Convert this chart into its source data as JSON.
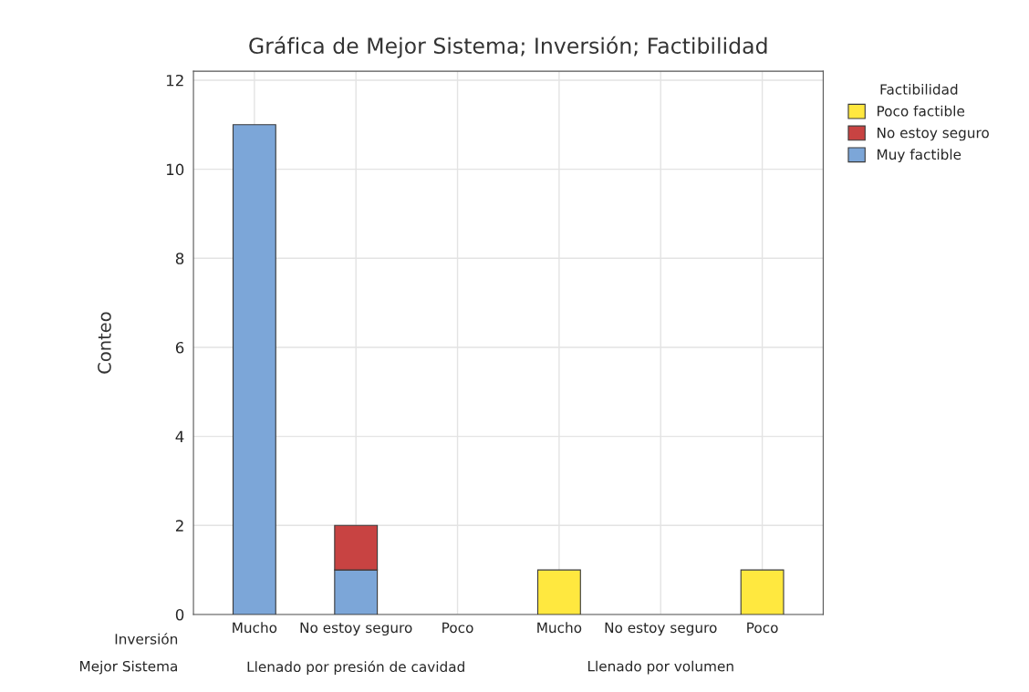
{
  "chart_data": {
    "type": "bar",
    "title": "Gráfica de Mejor Sistema; Inversión; Factibilidad",
    "ylabel": "Conteo",
    "legend_title": "Factibilidad",
    "categories": [
      "Mucho",
      "No estoy seguro",
      "Poco",
      "Mucho",
      "No estoy seguro",
      "Poco"
    ],
    "series": [
      {
        "name": "Muy factible",
        "color": "#7ca6d8",
        "values": [
          11,
          1,
          0,
          0,
          0,
          0
        ]
      },
      {
        "name": "No estoy seguro",
        "color": "#c84342",
        "values": [
          0,
          1,
          0,
          0,
          0,
          0
        ]
      },
      {
        "name": "Poco factible",
        "color": "#ffe83f",
        "values": [
          0,
          0,
          0,
          1,
          0,
          1
        ]
      }
    ],
    "stacked": true,
    "ylim": [
      0,
      12.2
    ],
    "yticks": [
      0,
      2,
      4,
      6,
      8,
      10,
      12
    ],
    "grid": true,
    "legend": "top right",
    "annotations": [
      "Inversión",
      "Mejor Sistema",
      "Llenado por presión de cavidad",
      "Llenado por volumen"
    ]
  }
}
